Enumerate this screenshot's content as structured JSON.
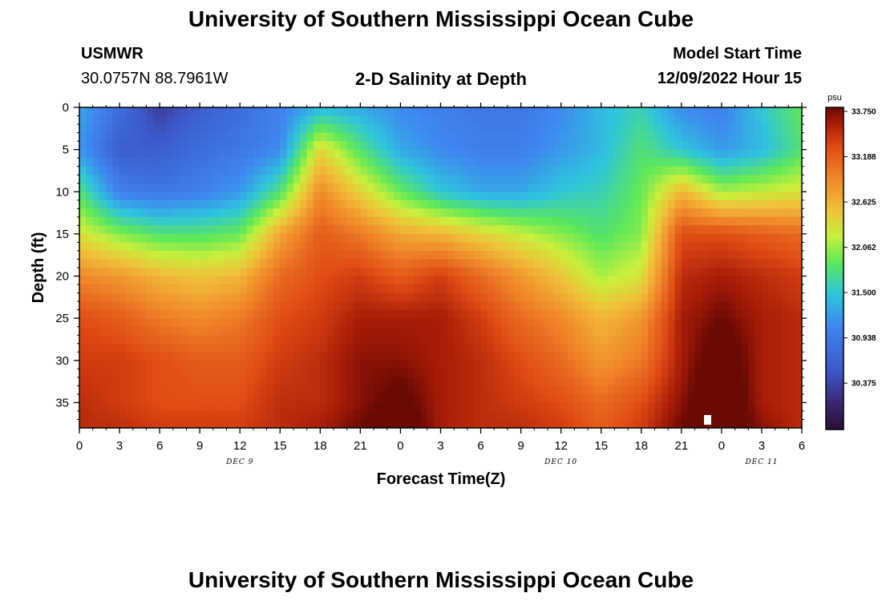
{
  "header": {
    "title": "University of Southern Mississippi Ocean Cube",
    "station_name": "USMWR",
    "station_coords": "30.0757N  88.7961W",
    "product": "2-D Salinity at Depth",
    "model_start_label": "Model Start Time",
    "model_start_value": "12/09/2022 Hour 15"
  },
  "footer": {
    "title": "University of Southern Mississippi Ocean Cube"
  },
  "colors": {
    "scale": [
      "#2a1036",
      "#3b2a78",
      "#3d57c8",
      "#3f86f0",
      "#2ec5dc",
      "#5ee858",
      "#c8f03c",
      "#f0c23a",
      "#f0862a",
      "#de4a14",
      "#a81c08",
      "#6a0a04"
    ]
  },
  "chart_data": {
    "type": "heatmap",
    "title": "2-D Salinity at Depth",
    "xlabel": "Forecast Time(Z)",
    "ylabel": "Depth (ft)",
    "x_hours_range": [
      0,
      54
    ],
    "ylim": [
      0,
      38
    ],
    "x_tick_hours": [
      0,
      3,
      6,
      9,
      12,
      15,
      18,
      21,
      24,
      27,
      30,
      33,
      36,
      39,
      42,
      45,
      48,
      51,
      54
    ],
    "x_tick_labels": [
      "0",
      "3",
      "6",
      "9",
      "12",
      "15",
      "18",
      "21",
      "0",
      "3",
      "6",
      "9",
      "12",
      "15",
      "18",
      "21",
      "0",
      "3",
      "6"
    ],
    "y_ticks": [
      0,
      5,
      10,
      15,
      20,
      25,
      30,
      35
    ],
    "y_tick_labels": [
      "0",
      "5",
      "10",
      "15",
      "20",
      "25",
      "30",
      "35"
    ],
    "date_labels": [
      {
        "text": "DEC 9",
        "hour": 12
      },
      {
        "text": "DEC 10",
        "hour": 36
      },
      {
        "text": "DEC 11",
        "hour": 51
      }
    ],
    "colorbar": {
      "unit": "psu",
      "min": 29.8,
      "max": 33.8,
      "tick_values": [
        33.75,
        33.188,
        32.625,
        32.062,
        31.5,
        30.938,
        30.375
      ],
      "tick_labels": [
        "33.750",
        "33.188",
        "32.625",
        "32.062",
        "31.500",
        "30.938",
        "30.375"
      ]
    },
    "salinity_psu": {
      "x_hours": [
        0,
        3,
        6,
        9,
        12,
        15,
        18,
        21,
        24,
        27,
        30,
        33,
        36,
        39,
        42,
        45,
        48,
        51,
        54
      ],
      "depths_ft": [
        0,
        5,
        10,
        15,
        20,
        25,
        30,
        35,
        38
      ],
      "values": [
        [
          31.3,
          30.8,
          30.3,
          30.6,
          30.8,
          31.0,
          31.4,
          31.3,
          31.1,
          31.0,
          30.9,
          30.9,
          31.1,
          31.4,
          31.6,
          31.1,
          31.0,
          31.5,
          31.9
        ],
        [
          31.2,
          30.6,
          30.6,
          30.8,
          30.9,
          31.1,
          32.4,
          31.8,
          31.3,
          31.1,
          31.0,
          31.0,
          31.2,
          31.4,
          31.8,
          31.5,
          31.2,
          31.4,
          31.8
        ],
        [
          31.8,
          31.0,
          30.9,
          31.0,
          31.2,
          31.8,
          32.9,
          32.4,
          31.9,
          31.5,
          31.3,
          31.3,
          31.5,
          31.6,
          31.9,
          32.6,
          32.1,
          32.2,
          32.3
        ],
        [
          32.3,
          32.0,
          31.8,
          31.8,
          31.9,
          32.7,
          33.2,
          33.0,
          32.7,
          32.6,
          32.4,
          32.2,
          32.0,
          31.8,
          32.0,
          33.3,
          33.3,
          33.2,
          33.1
        ],
        [
          32.9,
          32.8,
          32.6,
          32.5,
          32.6,
          33.1,
          33.3,
          33.4,
          33.2,
          33.4,
          33.1,
          32.8,
          32.5,
          32.1,
          32.3,
          33.5,
          33.6,
          33.5,
          33.4
        ],
        [
          33.3,
          33.2,
          33.0,
          32.9,
          33.0,
          33.3,
          33.4,
          33.6,
          33.6,
          33.6,
          33.4,
          33.1,
          32.9,
          32.6,
          32.8,
          33.6,
          33.8,
          33.6,
          33.5
        ],
        [
          33.4,
          33.4,
          33.3,
          33.2,
          33.2,
          33.4,
          33.5,
          33.7,
          33.7,
          33.6,
          33.5,
          33.3,
          33.1,
          32.8,
          33.0,
          33.6,
          34.0,
          33.6,
          33.5
        ],
        [
          33.5,
          33.4,
          33.3,
          33.3,
          33.3,
          33.5,
          33.5,
          33.7,
          33.9,
          33.6,
          33.5,
          33.4,
          33.3,
          33.1,
          33.3,
          33.7,
          34.1,
          33.6,
          33.5
        ],
        [
          33.5,
          33.5,
          33.4,
          33.4,
          33.4,
          33.5,
          33.6,
          33.8,
          34.0,
          33.6,
          33.5,
          33.5,
          33.4,
          33.2,
          33.4,
          33.8,
          34.1,
          33.7,
          33.5
        ]
      ]
    }
  }
}
